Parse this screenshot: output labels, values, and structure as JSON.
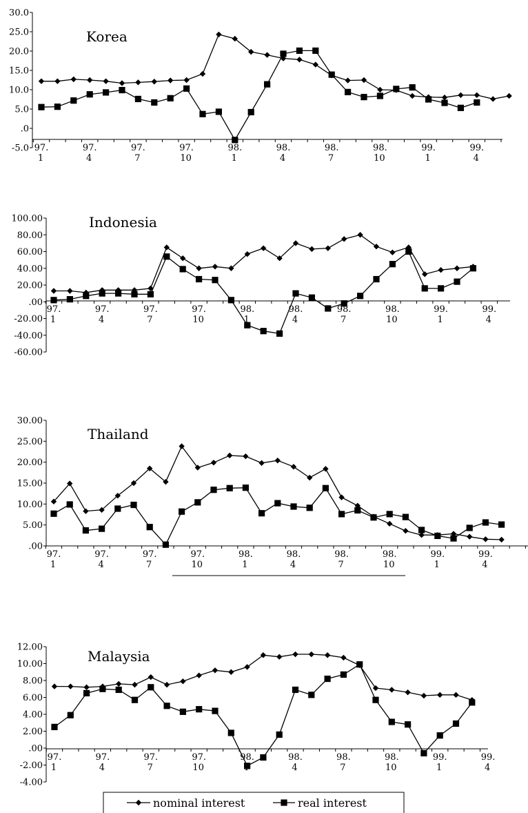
{
  "chart_data": [
    {
      "type": "line",
      "title": "Korea",
      "x_labels": [
        {
          "year": "97.",
          "month": "1"
        },
        {
          "year": "97.",
          "month": "4"
        },
        {
          "year": "97.",
          "month": "7"
        },
        {
          "year": "97.",
          "month": "10"
        },
        {
          "year": "98.",
          "month": "1"
        },
        {
          "year": "98.",
          "month": "4"
        },
        {
          "year": "98.",
          "month": "7"
        },
        {
          "year": "98.",
          "month": "10"
        },
        {
          "year": "99.",
          "month": "1"
        },
        {
          "year": "99.",
          "month": "4"
        }
      ],
      "y_ticks": [
        "30.0",
        "25.0",
        "20.0",
        "15.0",
        "10.0",
        "5.0",
        ".0",
        "-5.0"
      ],
      "ylim": [
        -5,
        30
      ],
      "series": [
        {
          "name": "nominal interest",
          "marker": "diamond",
          "values": [
            12.2,
            12.2,
            12.7,
            12.5,
            12.2,
            11.7,
            11.9,
            12.1,
            12.4,
            12.5,
            14.1,
            24.3,
            23.2,
            19.8,
            19.0,
            18.1,
            17.8,
            16.5,
            13.7,
            12.4,
            12.5,
            10.0,
            9.9,
            8.4,
            8.1,
            8.0,
            8.6,
            8.6,
            7.6,
            8.4
          ]
        },
        {
          "name": "real interest",
          "marker": "square",
          "values": [
            5.5,
            5.6,
            7.2,
            8.8,
            9.3,
            9.9,
            7.6,
            6.7,
            7.8,
            10.3,
            3.7,
            4.3,
            -3.0,
            4.2,
            11.4,
            19.3,
            20.1,
            20.1,
            13.9,
            9.4,
            8.1,
            8.4,
            10.2,
            10.6,
            7.5,
            6.6,
            5.3,
            6.7,
            null,
            null
          ]
        }
      ]
    },
    {
      "type": "line",
      "title": "Indonesia",
      "x_labels": [
        {
          "year": "97.",
          "month": "1"
        },
        {
          "year": "97.",
          "month": "4"
        },
        {
          "year": "97.",
          "month": "7"
        },
        {
          "year": "97.",
          "month": "10"
        },
        {
          "year": "98.",
          "month": "1"
        },
        {
          "year": "98.",
          "month": "4"
        },
        {
          "year": "98.",
          "month": "7"
        },
        {
          "year": "98.",
          "month": "10"
        },
        {
          "year": "99.",
          "month": "1"
        },
        {
          "year": "99.",
          "month": "4"
        }
      ],
      "y_ticks": [
        "100.00",
        "80.00",
        "60.00",
        "40.00",
        "20.00",
        ".00",
        "-20.00",
        "-40.00",
        "-60.00"
      ],
      "ylim": [
        -60,
        100
      ],
      "series": [
        {
          "name": "nominal interest",
          "marker": "diamond",
          "values": [
            13,
            13,
            11,
            14,
            14,
            14,
            16,
            65,
            52,
            40,
            42,
            40,
            57,
            64,
            52,
            70,
            63,
            64,
            75,
            80,
            66,
            59,
            65,
            33,
            38,
            40,
            42
          ]
        },
        {
          "name": "real interest",
          "marker": "square",
          "values": [
            2,
            3,
            7,
            10,
            10,
            9,
            9,
            54,
            39,
            27,
            26,
            2,
            -28,
            -35,
            -38,
            10,
            5,
            -8,
            -2,
            7,
            27,
            45,
            60,
            16,
            16,
            24,
            40
          ]
        }
      ]
    },
    {
      "type": "line",
      "title": "Thailand",
      "x_labels": [
        {
          "year": "97.",
          "month": "1"
        },
        {
          "year": "97.",
          "month": "4"
        },
        {
          "year": "97.",
          "month": "7"
        },
        {
          "year": "97.",
          "month": "10"
        },
        {
          "year": "98.",
          "month": "1"
        },
        {
          "year": "98.",
          "month": "4"
        },
        {
          "year": "98.",
          "month": "7"
        },
        {
          "year": "98.",
          "month": "10"
        },
        {
          "year": "99.",
          "month": "1"
        },
        {
          "year": "99.",
          "month": "4"
        }
      ],
      "y_ticks": [
        "30.00",
        "25.00",
        "20.00",
        "15.00",
        "10.00",
        "5.00",
        ".00"
      ],
      "ylim": [
        0,
        30
      ],
      "series": [
        {
          "name": "nominal interest",
          "marker": "diamond",
          "values": [
            10.6,
            14.9,
            8.3,
            8.6,
            12.0,
            15.0,
            18.5,
            15.3,
            23.8,
            18.7,
            19.9,
            21.6,
            21.4,
            19.8,
            20.4,
            18.9,
            16.3,
            18.4,
            11.6,
            9.6,
            7.0,
            5.3,
            3.6,
            2.6,
            2.6,
            2.9,
            2.2,
            1.6,
            1.5
          ]
        },
        {
          "name": "real interest",
          "marker": "square",
          "values": [
            7.7,
            9.9,
            3.7,
            4.1,
            8.9,
            9.8,
            4.5,
            0.3,
            8.2,
            10.4,
            13.4,
            13.8,
            13.9,
            7.8,
            10.2,
            9.4,
            9.1,
            13.8,
            7.6,
            8.5,
            6.8,
            7.6,
            6.9,
            3.8,
            2.4,
            1.8,
            4.3,
            5.6,
            5.1
          ]
        }
      ]
    },
    {
      "type": "line",
      "title": "Malaysia",
      "x_labels": [
        {
          "year": "97.",
          "month": "1"
        },
        {
          "year": "97.",
          "month": "4"
        },
        {
          "year": "97.",
          "month": "7"
        },
        {
          "year": "97.",
          "month": "10"
        },
        {
          "year": "98.",
          "month": "1"
        },
        {
          "year": "98.",
          "month": "4"
        },
        {
          "year": "98.",
          "month": "7"
        },
        {
          "year": "98.",
          "month": "10"
        },
        {
          "year": "99.",
          "month": "1"
        },
        {
          "year": "99.",
          "month": "4"
        }
      ],
      "y_ticks": [
        "12.00",
        "10.00",
        "8.00",
        "6.00",
        "4.00",
        "2.00",
        ".00",
        "-2.00",
        "-4.00"
      ],
      "ylim": [
        -4,
        12
      ],
      "series": [
        {
          "name": "nominal interest",
          "marker": "diamond",
          "values": [
            7.3,
            7.3,
            7.2,
            7.3,
            7.6,
            7.5,
            8.4,
            7.5,
            7.9,
            8.6,
            9.2,
            9.0,
            9.6,
            11.0,
            10.8,
            11.1,
            11.1,
            11.0,
            10.7,
            9.8,
            7.1,
            6.9,
            6.6,
            6.2,
            6.3,
            6.3,
            5.7
          ]
        },
        {
          "name": "real interest",
          "marker": "square",
          "values": [
            2.5,
            3.9,
            6.5,
            7.0,
            6.9,
            5.7,
            7.2,
            5.0,
            4.3,
            4.6,
            4.4,
            1.8,
            -2.1,
            -1.1,
            1.6,
            6.9,
            6.3,
            8.2,
            8.7,
            9.9,
            5.7,
            3.1,
            2.8,
            -0.6,
            1.5,
            2.9,
            5.4
          ]
        }
      ]
    }
  ],
  "legend": {
    "items": [
      {
        "label": "nominal interest",
        "marker": "diamond"
      },
      {
        "label": "real interest",
        "marker": "square"
      }
    ]
  }
}
